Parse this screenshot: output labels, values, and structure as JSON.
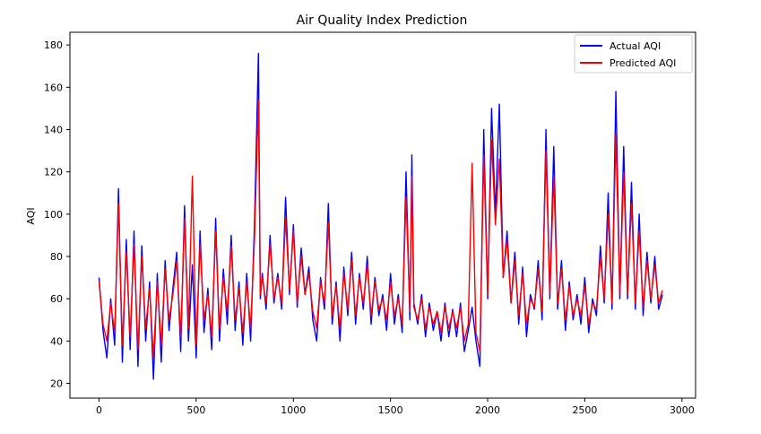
{
  "chart_data": {
    "type": "line",
    "title": "Air Quality Index Prediction",
    "xlabel": "",
    "ylabel": "AQI",
    "xlim": [
      -150,
      3070
    ],
    "ylim": [
      13,
      186
    ],
    "xticks": [
      0,
      500,
      1000,
      1500,
      2000,
      2500,
      3000
    ],
    "yticks": [
      20,
      40,
      60,
      80,
      100,
      120,
      140,
      160,
      180
    ],
    "xtick_labels": [
      "0",
      "500",
      "1000",
      "1500",
      "2000",
      "2500",
      "3000"
    ],
    "ytick_labels": [
      "20",
      "40",
      "60",
      "80",
      "100",
      "120",
      "140",
      "160",
      "180"
    ],
    "grid": false,
    "legend": "top-right",
    "series": [
      {
        "name": "Actual AQI",
        "color": "#0000ff",
        "x": [
          0,
          20,
          40,
          60,
          80,
          100,
          120,
          140,
          160,
          180,
          200,
          220,
          240,
          260,
          280,
          300,
          320,
          340,
          360,
          380,
          400,
          420,
          440,
          460,
          480,
          500,
          520,
          540,
          560,
          580,
          600,
          620,
          640,
          660,
          680,
          700,
          720,
          740,
          760,
          780,
          800,
          820,
          830,
          840,
          860,
          880,
          900,
          920,
          940,
          960,
          980,
          1000,
          1020,
          1040,
          1060,
          1080,
          1100,
          1120,
          1140,
          1160,
          1180,
          1200,
          1220,
          1240,
          1260,
          1280,
          1300,
          1320,
          1340,
          1360,
          1380,
          1400,
          1420,
          1440,
          1460,
          1480,
          1500,
          1520,
          1540,
          1560,
          1580,
          1600,
          1610,
          1620,
          1640,
          1660,
          1680,
          1700,
          1720,
          1740,
          1760,
          1780,
          1800,
          1820,
          1840,
          1860,
          1880,
          1900,
          1920,
          1940,
          1960,
          1980,
          2000,
          2020,
          2040,
          2060,
          2080,
          2100,
          2120,
          2140,
          2160,
          2180,
          2200,
          2220,
          2240,
          2260,
          2280,
          2300,
          2320,
          2340,
          2360,
          2380,
          2400,
          2420,
          2440,
          2460,
          2480,
          2500,
          2520,
          2540,
          2560,
          2580,
          2600,
          2620,
          2640,
          2660,
          2680,
          2700,
          2720,
          2740,
          2760,
          2780,
          2800,
          2820,
          2840,
          2860,
          2880,
          2900
        ],
        "values": [
          70,
          45,
          32,
          60,
          38,
          112,
          30,
          88,
          36,
          92,
          28,
          85,
          40,
          68,
          22,
          72,
          30,
          78,
          45,
          65,
          82,
          35,
          104,
          40,
          76,
          32,
          92,
          44,
          65,
          36,
          98,
          40,
          74,
          48,
          90,
          45,
          68,
          38,
          72,
          40,
          95,
          176,
          60,
          72,
          55,
          90,
          58,
          72,
          55,
          108,
          62,
          95,
          56,
          84,
          62,
          75,
          50,
          40,
          70,
          55,
          105,
          48,
          68,
          40,
          75,
          52,
          82,
          48,
          72,
          55,
          80,
          48,
          70,
          52,
          62,
          45,
          72,
          48,
          62,
          44,
          120,
          50,
          128,
          58,
          48,
          62,
          42,
          58,
          45,
          54,
          40,
          58,
          42,
          55,
          42,
          58,
          35,
          45,
          56,
          40,
          28,
          140,
          60,
          150,
          100,
          152,
          70,
          92,
          58,
          82,
          48,
          75,
          42,
          62,
          55,
          78,
          50,
          140,
          60,
          132,
          55,
          78,
          45,
          68,
          50,
          62,
          48,
          70,
          44,
          60,
          52,
          85,
          58,
          110,
          55,
          158,
          60,
          132,
          60,
          115,
          55,
          100,
          52,
          82,
          58,
          80,
          55,
          62
        ]
      },
      {
        "name": "Predicted AQI",
        "color": "#ff0000",
        "x": [
          0,
          20,
          40,
          60,
          80,
          100,
          120,
          140,
          160,
          180,
          200,
          220,
          240,
          260,
          280,
          300,
          320,
          340,
          360,
          380,
          400,
          420,
          440,
          460,
          480,
          500,
          520,
          540,
          560,
          580,
          600,
          620,
          640,
          660,
          680,
          700,
          720,
          740,
          760,
          780,
          800,
          820,
          830,
          840,
          860,
          880,
          900,
          920,
          940,
          960,
          980,
          1000,
          1020,
          1040,
          1060,
          1080,
          1100,
          1120,
          1140,
          1160,
          1180,
          1200,
          1220,
          1240,
          1260,
          1280,
          1300,
          1320,
          1340,
          1360,
          1380,
          1400,
          1420,
          1440,
          1460,
          1480,
          1500,
          1520,
          1540,
          1560,
          1580,
          1600,
          1610,
          1620,
          1640,
          1660,
          1680,
          1700,
          1720,
          1740,
          1760,
          1780,
          1800,
          1820,
          1840,
          1860,
          1880,
          1900,
          1920,
          1940,
          1960,
          1980,
          2000,
          2020,
          2040,
          2060,
          2080,
          2100,
          2120,
          2140,
          2160,
          2180,
          2200,
          2220,
          2240,
          2260,
          2280,
          2300,
          2320,
          2340,
          2360,
          2380,
          2400,
          2420,
          2440,
          2460,
          2480,
          2500,
          2520,
          2540,
          2560,
          2580,
          2600,
          2620,
          2640,
          2660,
          2680,
          2700,
          2720,
          2740,
          2760,
          2780,
          2800,
          2820,
          2840,
          2860,
          2880,
          2900
        ],
        "values": [
          68,
          48,
          40,
          58,
          44,
          105,
          38,
          82,
          42,
          86,
          36,
          80,
          46,
          65,
          32,
          68,
          38,
          74,
          50,
          62,
          78,
          42,
          98,
          46,
          118,
          38,
          86,
          50,
          62,
          42,
          92,
          46,
          70,
          54,
          85,
          50,
          65,
          44,
          68,
          46,
          88,
          154,
          62,
          70,
          58,
          86,
          60,
          70,
          58,
          98,
          64,
          92,
          58,
          80,
          62,
          72,
          54,
          46,
          68,
          58,
          96,
          52,
          66,
          46,
          72,
          55,
          78,
          52,
          70,
          58,
          76,
          52,
          68,
          55,
          60,
          50,
          68,
          52,
          60,
          48,
          108,
          54,
          118,
          56,
          50,
          60,
          46,
          56,
          48,
          54,
          44,
          56,
          46,
          54,
          46,
          56,
          40,
          48,
          124,
          44,
          35,
          128,
          62,
          135,
          95,
          126,
          70,
          88,
          58,
          78,
          52,
          72,
          48,
          60,
          56,
          74,
          54,
          130,
          62,
          118,
          58,
          74,
          50,
          66,
          52,
          60,
          52,
          66,
          48,
          58,
          55,
          80,
          60,
          100,
          58,
          138,
          62,
          120,
          62,
          105,
          58,
          92,
          56,
          78,
          60,
          76,
          58,
          64
        ]
      }
    ]
  }
}
